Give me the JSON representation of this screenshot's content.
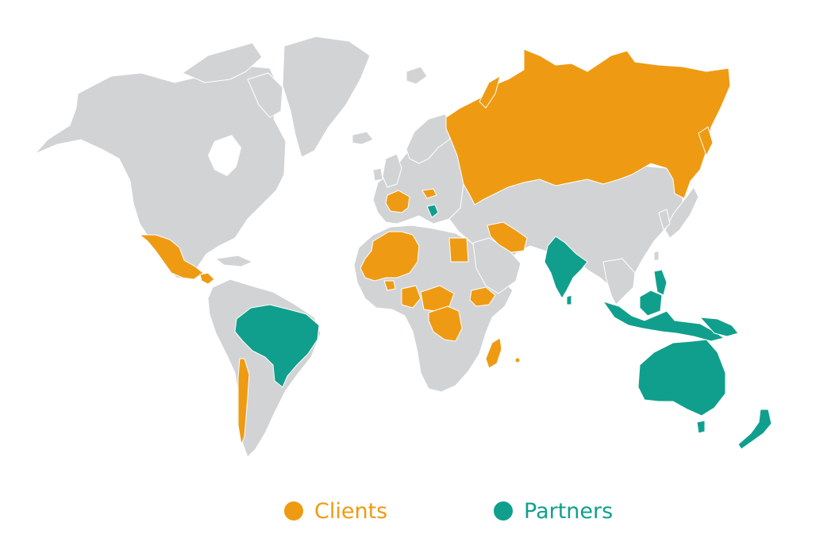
{
  "map": {
    "colors": {
      "land": "#d2d3d5",
      "border": "#ffffff",
      "clients": "#ee9b13",
      "partners": "#109f8d"
    },
    "clients": [
      "Russia",
      "Mexico",
      "France",
      "Hungary",
      "Iran",
      "Chile",
      "Morocco",
      "Algeria",
      "Mali",
      "Senegal",
      "Guinea",
      "Nigeria",
      "Cameroon",
      "Central African Republic",
      "Egypt",
      "Ethiopia",
      "DR Congo",
      "Madagascar",
      "Mauritius",
      "Guatemala",
      "Honduras"
    ],
    "partners": [
      "Brazil",
      "India",
      "Indonesia",
      "Papua New Guinea",
      "Philippines",
      "Malaysia",
      "Australia",
      "New Zealand",
      "Bosnia and Herzegovina",
      "Sri Lanka"
    ]
  },
  "legend": {
    "clients": {
      "label": "Clients",
      "color": "#ee9b13"
    },
    "partners": {
      "label": "Partners",
      "color": "#109f8d"
    }
  }
}
